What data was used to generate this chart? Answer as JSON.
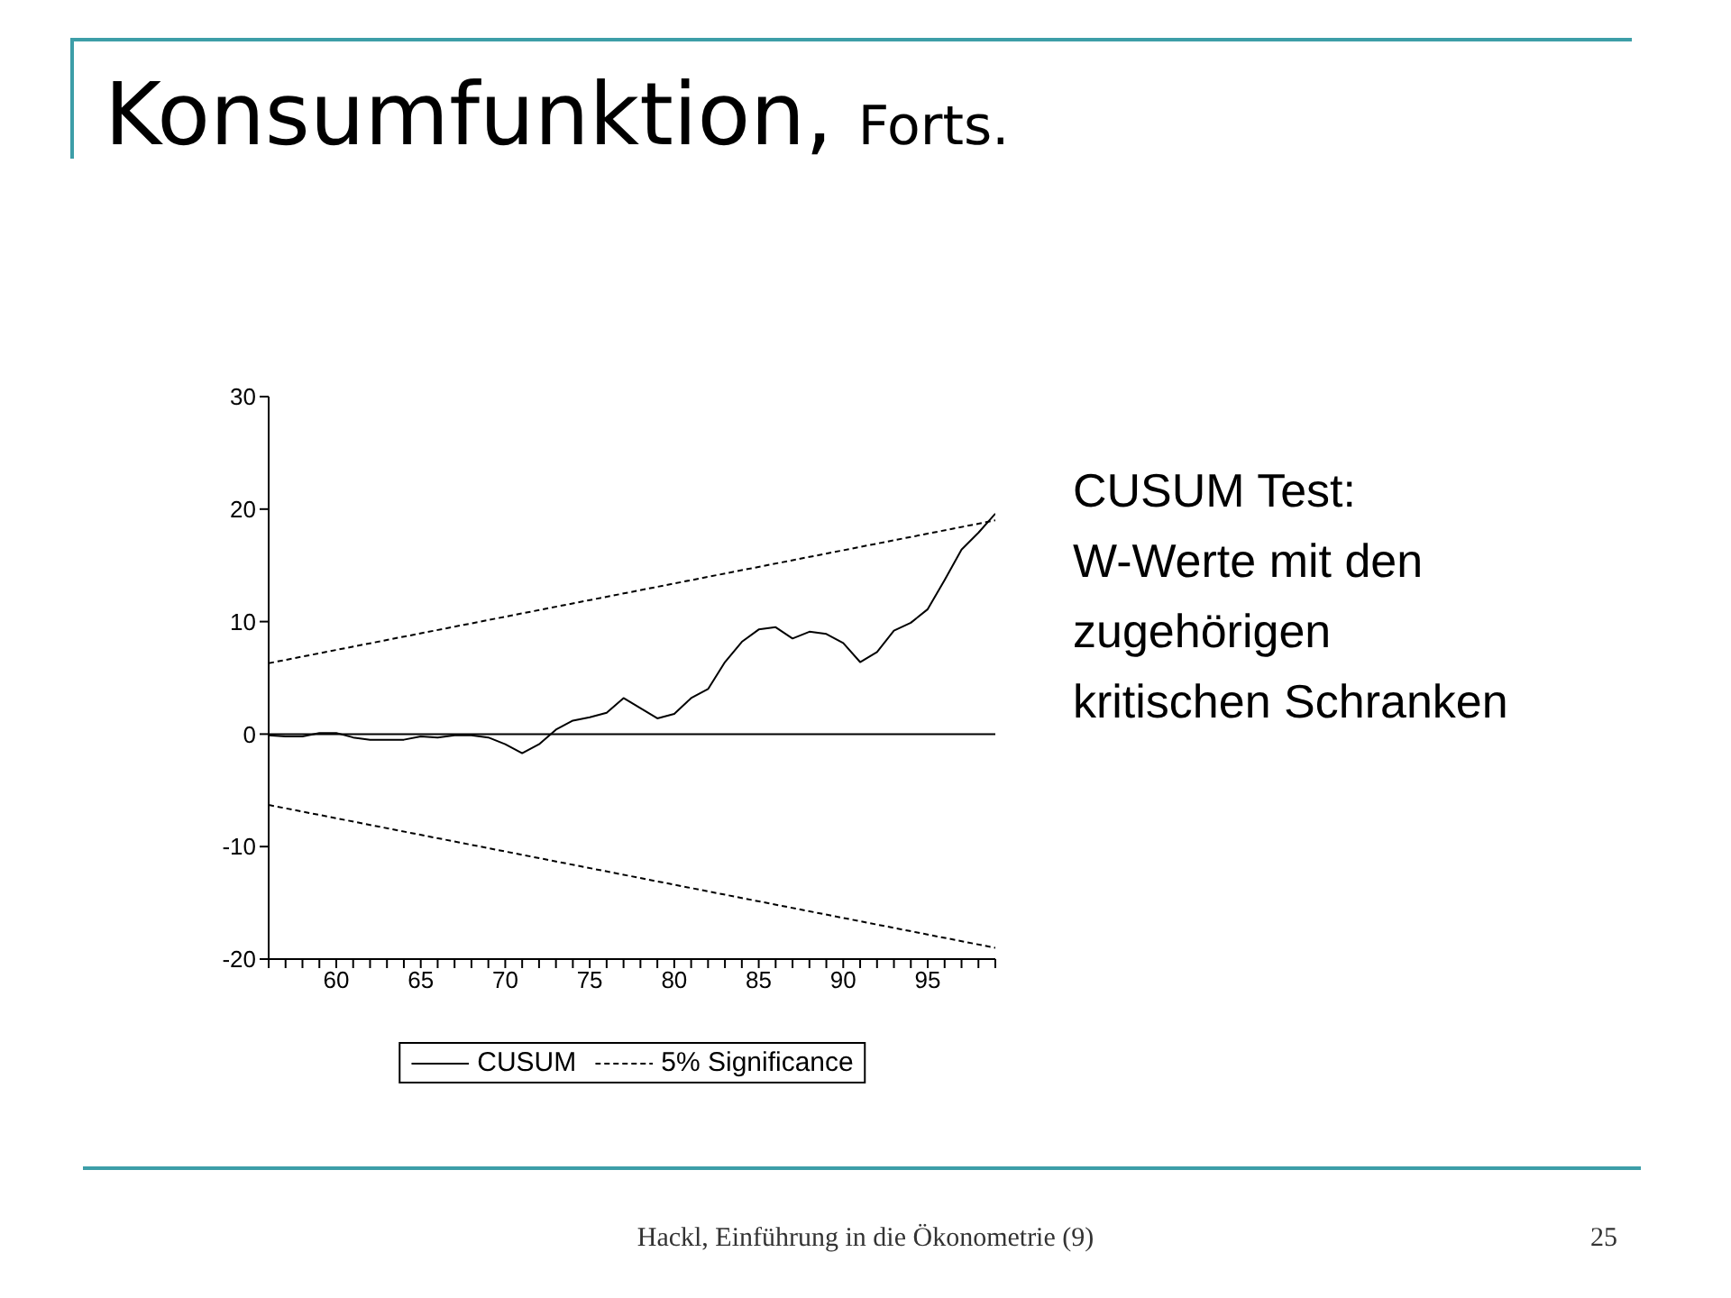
{
  "chart_data": {
    "type": "line",
    "title": "Konsumfunktion,",
    "subtitle": "Forts.",
    "annotations": [
      "CUSUM Test:\nW-Werte mit den\nzugehörigen\nkritischen Schranken",
      "Hackl, Einführung in die Ökonometrie (9)",
      "25"
    ],
    "series": [
      {
        "name": "CUSUM",
        "color": "#000000",
        "line_style": "solid",
        "x": [
          56,
          57,
          58,
          59,
          60,
          61,
          62,
          63,
          64,
          65,
          66,
          67,
          68,
          69,
          70,
          71,
          72,
          73,
          74,
          75,
          76,
          77,
          78,
          79,
          80,
          81,
          82,
          83,
          84,
          85,
          86,
          87,
          88,
          89,
          90,
          91,
          92,
          93,
          94,
          95,
          96,
          97,
          98,
          99
        ],
        "values": [
          -0.1,
          -0.2,
          -0.2,
          0.1,
          0.1,
          -0.3,
          -0.5,
          -0.5,
          -0.5,
          -0.2,
          -0.3,
          -0.1,
          -0.1,
          -0.3,
          -0.9,
          -1.7,
          -0.9,
          0.4,
          1.2,
          1.5,
          1.9,
          3.2,
          2.3,
          1.4,
          1.8,
          3.2,
          4.0,
          6.4,
          8.2,
          9.3,
          9.5,
          8.5,
          9.1,
          8.9,
          8.1,
          6.4,
          7.3,
          9.2,
          9.9,
          11.1,
          13.7,
          16.4,
          17.9,
          19.6
        ]
      },
      {
        "name": "5% Significance",
        "color": "#000000",
        "line_style": "dashed",
        "x": [
          56,
          99
        ],
        "values": [
          6.3,
          19.0
        ]
      },
      {
        "color": "#000000",
        "line_style": "dashed",
        "x": [
          56,
          99
        ],
        "values": [
          -6.3,
          -19.0
        ]
      }
    ],
    "xlim": [
      56,
      99
    ],
    "xticks": [
      {
        "value": 56,
        "label": null
      },
      {
        "value": 57,
        "label": null
      },
      {
        "value": 58,
        "label": null
      },
      {
        "value": 59,
        "label": null
      },
      60,
      {
        "value": 61,
        "label": null
      },
      {
        "value": 62,
        "label": null
      },
      {
        "value": 63,
        "label": null
      },
      {
        "value": 64,
        "label": null
      },
      65,
      {
        "value": 66,
        "label": null
      },
      {
        "value": 67,
        "label": null
      },
      {
        "value": 68,
        "label": null
      },
      {
        "value": 69,
        "label": null
      },
      70,
      {
        "value": 71,
        "label": null
      },
      {
        "value": 72,
        "label": null
      },
      {
        "value": 73,
        "label": null
      },
      {
        "value": 74,
        "label": null
      },
      75,
      {
        "value": 76,
        "label": null
      },
      {
        "value": 77,
        "label": null
      },
      {
        "value": 78,
        "label": null
      },
      {
        "value": 79,
        "label": null
      },
      80,
      {
        "value": 81,
        "label": null
      },
      {
        "value": 82,
        "label": null
      },
      {
        "value": 83,
        "label": null
      },
      {
        "value": 84,
        "label": null
      },
      85,
      {
        "value": 86,
        "label": null
      },
      {
        "value": 87,
        "label": null
      },
      {
        "value": 88,
        "label": null
      },
      {
        "value": 89,
        "label": null
      },
      90,
      {
        "value": 91,
        "label": null
      },
      {
        "value": 92,
        "label": null
      },
      {
        "value": 93,
        "label": null
      },
      {
        "value": 94,
        "label": null
      },
      95,
      {
        "value": 96,
        "label": null
      },
      {
        "value": 97,
        "label": null
      },
      {
        "value": 98,
        "label": null
      },
      {
        "value": 99,
        "label": null
      }
    ],
    "ylim": [
      -20,
      30
    ],
    "yticks": [
      -20,
      -10,
      0,
      10,
      20,
      30
    ],
    "ref_lines": [
      {
        "axis": "y",
        "value": 0,
        "color": "#000000",
        "line_style": "solid"
      }
    ],
    "legend": "bottom"
  }
}
